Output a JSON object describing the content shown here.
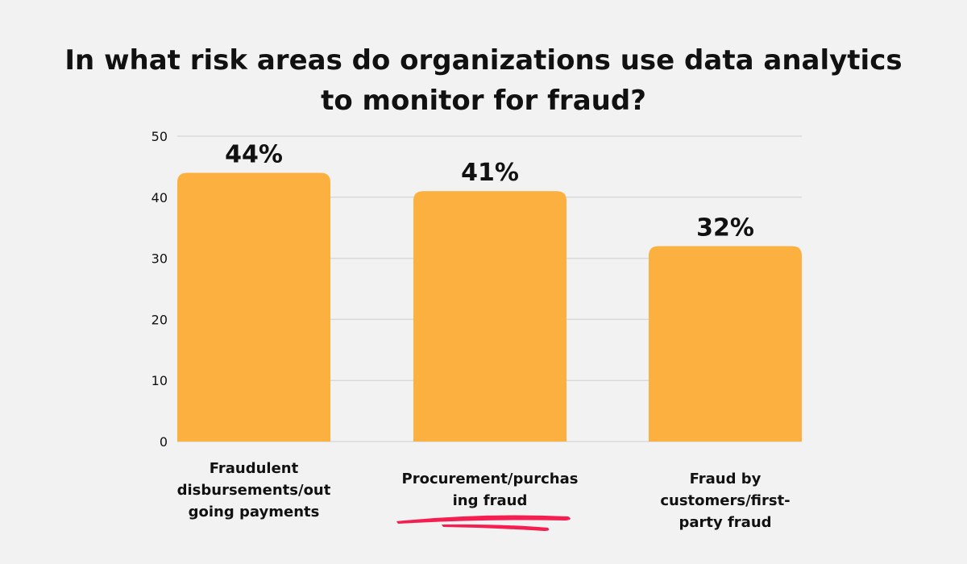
{
  "chart_data": {
    "type": "bar",
    "title_lines": [
      "In what risk areas do organizations use data analytics",
      "to monitor for fraud?"
    ],
    "categories": [
      [
        "Fraudulent",
        "disbursements/out",
        "going payments"
      ],
      [
        "Procurement/purchas",
        "ing fraud"
      ],
      [
        "Fraud by",
        "customers/first-",
        "party fraud"
      ]
    ],
    "values": [
      44,
      41,
      32
    ],
    "data_labels": [
      "44%",
      "41%",
      "32%"
    ],
    "y_ticks": [
      "0",
      "10",
      "20",
      "30",
      "40",
      "50"
    ],
    "ylim": [
      0,
      50
    ],
    "grid": true,
    "xlabel": "",
    "ylabel": "",
    "colors": {
      "bar": "#FBB040",
      "grid": "#d9d9d9",
      "underline": "#F51E50"
    }
  }
}
